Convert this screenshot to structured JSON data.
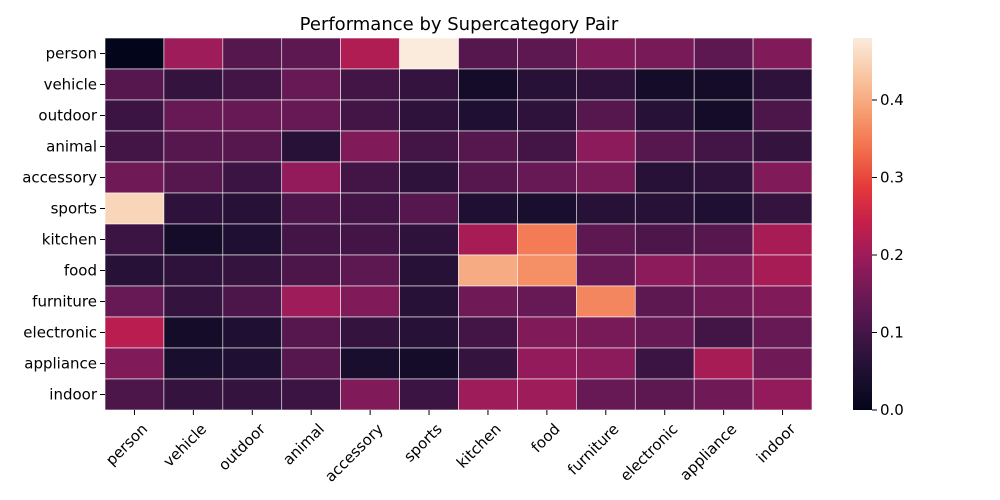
{
  "chart_data": {
    "type": "heatmap",
    "title": "Performance by Supercategory Pair",
    "xlabel": "",
    "ylabel": "",
    "row_labels": [
      "person",
      "vehicle",
      "outdoor",
      "animal",
      "accessory",
      "sports",
      "kitchen",
      "food",
      "furniture",
      "electronic",
      "appliance",
      "indoor"
    ],
    "col_labels": [
      "person",
      "vehicle",
      "outdoor",
      "animal",
      "accessory",
      "sports",
      "kitchen",
      "food",
      "furniture",
      "electronic",
      "appliance",
      "indoor"
    ],
    "values": [
      [
        0.0,
        0.2,
        0.12,
        0.13,
        0.22,
        0.48,
        0.12,
        0.13,
        0.17,
        0.16,
        0.13,
        0.17
      ],
      [
        0.12,
        0.08,
        0.1,
        0.14,
        0.1,
        0.08,
        0.03,
        0.06,
        0.07,
        0.03,
        0.03,
        0.07
      ],
      [
        0.09,
        0.14,
        0.14,
        0.14,
        0.1,
        0.07,
        0.05,
        0.07,
        0.12,
        0.06,
        0.03,
        0.11
      ],
      [
        0.1,
        0.12,
        0.12,
        0.06,
        0.17,
        0.1,
        0.12,
        0.1,
        0.18,
        0.12,
        0.1,
        0.08
      ],
      [
        0.15,
        0.12,
        0.09,
        0.19,
        0.1,
        0.07,
        0.12,
        0.14,
        0.16,
        0.06,
        0.07,
        0.17
      ],
      [
        0.45,
        0.07,
        0.06,
        0.11,
        0.1,
        0.12,
        0.05,
        0.04,
        0.06,
        0.06,
        0.05,
        0.08
      ],
      [
        0.09,
        0.03,
        0.05,
        0.1,
        0.1,
        0.07,
        0.21,
        0.35,
        0.13,
        0.11,
        0.12,
        0.21
      ],
      [
        0.06,
        0.07,
        0.08,
        0.11,
        0.13,
        0.06,
        0.4,
        0.37,
        0.14,
        0.18,
        0.17,
        0.21
      ],
      [
        0.14,
        0.08,
        0.11,
        0.2,
        0.17,
        0.06,
        0.15,
        0.14,
        0.36,
        0.13,
        0.15,
        0.17
      ],
      [
        0.23,
        0.03,
        0.05,
        0.12,
        0.08,
        0.06,
        0.1,
        0.17,
        0.16,
        0.14,
        0.1,
        0.14
      ],
      [
        0.17,
        0.04,
        0.05,
        0.12,
        0.04,
        0.03,
        0.08,
        0.19,
        0.18,
        0.09,
        0.21,
        0.15
      ],
      [
        0.11,
        0.08,
        0.08,
        0.09,
        0.17,
        0.09,
        0.2,
        0.2,
        0.14,
        0.13,
        0.15,
        0.19
      ]
    ],
    "vmin": 0.0,
    "vmax": 0.48,
    "colormap": "rocket",
    "colorbar_ticks": [
      0.0,
      0.1,
      0.2,
      0.3,
      0.4
    ],
    "colorbar_tick_labels": [
      "0.0",
      "0.1",
      "0.2",
      "0.3",
      "0.4"
    ],
    "grid": true,
    "gridline_color": "#ffffff"
  }
}
